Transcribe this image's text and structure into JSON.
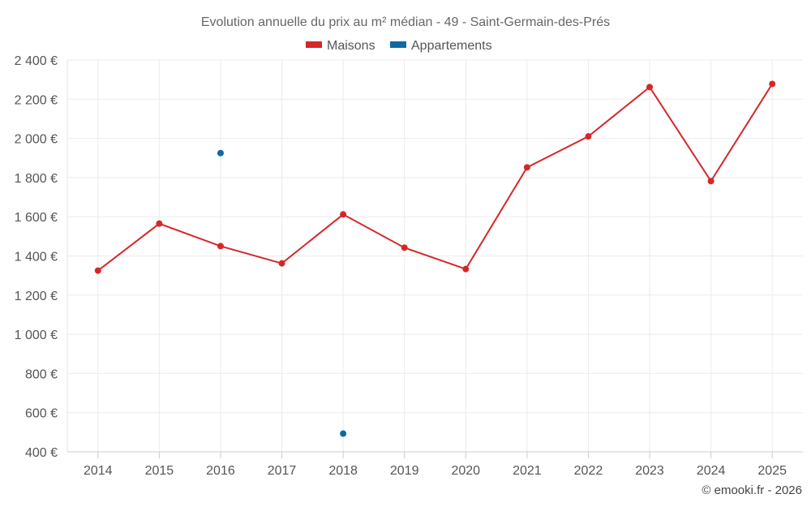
{
  "chart_data": {
    "type": "line",
    "title": "Evolution annuelle du prix au m² médian - 49 - Saint-Germain-des-Prés",
    "categories": [
      "2014",
      "2015",
      "2016",
      "2017",
      "2018",
      "2019",
      "2020",
      "2021",
      "2022",
      "2023",
      "2024",
      "2025"
    ],
    "ylim": [
      400,
      2400
    ],
    "y_ticks": [
      400,
      600,
      800,
      1000,
      1200,
      1400,
      1600,
      1800,
      2000,
      2200,
      2400
    ],
    "y_tick_labels": [
      "400 €",
      "600 €",
      "800 €",
      "1 000 €",
      "1 200 €",
      "1 400 €",
      "1 600 €",
      "1 800 €",
      "2 000 €",
      "2 200 €",
      "2 400 €"
    ],
    "grid": true,
    "legend_position": "top-center",
    "series": [
      {
        "name": "Maisons",
        "color": "#d62728",
        "values": [
          1325,
          1565,
          1450,
          1362,
          1612,
          1442,
          1333,
          1852,
          2010,
          2262,
          1782,
          2278
        ]
      },
      {
        "name": "Appartements",
        "color": "#0e6aa4",
        "values": [
          null,
          null,
          1925,
          null,
          493,
          null,
          null,
          null,
          null,
          null,
          null,
          null
        ]
      }
    ],
    "credit": "© emooki.fr - 2026"
  }
}
